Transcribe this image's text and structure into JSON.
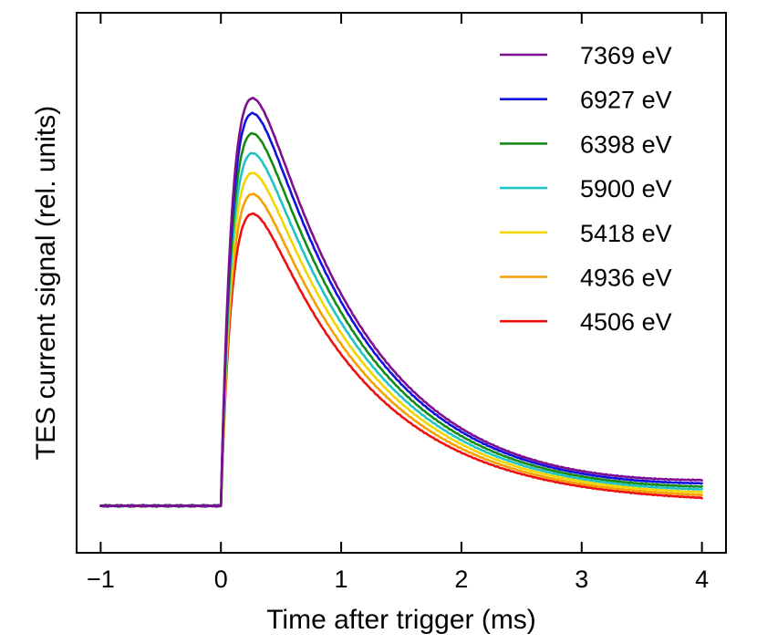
{
  "chart_data": {
    "type": "line",
    "title": "",
    "xlabel": "Time after trigger (ms)",
    "ylabel": "TES current signal (rel. units)",
    "xlim": [
      -1.2,
      4.2
    ],
    "ylim": [
      -0.1,
      1.05
    ],
    "xticks": [
      -1,
      0,
      1,
      2,
      3,
      4
    ],
    "xtick_labels": [
      "−1",
      "0",
      "1",
      "2",
      "3",
      "4"
    ],
    "y_ticks_shown": false,
    "grid": false,
    "legend_position": "top-right",
    "baseline": 0.0,
    "pulse_model": {
      "rise_tau_ms": 0.12,
      "decay_tau_ms": 0.95,
      "trigger_ms": 0.0,
      "end_ms": 4.0
    },
    "series": [
      {
        "name": "7369 eV",
        "color": "#7f0f90",
        "peak_time_ms": 0.37,
        "peak": 0.868,
        "value_at_4ms": 0.055
      },
      {
        "name": "6927 eV",
        "color": "#1010e0",
        "peak_time_ms": 0.37,
        "peak": 0.836,
        "value_at_4ms": 0.048
      },
      {
        "name": "6398 eV",
        "color": "#168a16",
        "peak_time_ms": 0.37,
        "peak": 0.793,
        "value_at_4ms": 0.041
      },
      {
        "name": "5900 eV",
        "color": "#20c4c4",
        "peak_time_ms": 0.37,
        "peak": 0.751,
        "value_at_4ms": 0.035
      },
      {
        "name": "5418 eV",
        "color": "#f2d600",
        "peak_time_ms": 0.37,
        "peak": 0.709,
        "value_at_4ms": 0.029
      },
      {
        "name": "4936 eV",
        "color": "#f5a000",
        "peak_time_ms": 0.37,
        "peak": 0.664,
        "value_at_4ms": 0.023
      },
      {
        "name": "4506 eV",
        "color": "#ee1111",
        "peak_time_ms": 0.37,
        "peak": 0.622,
        "value_at_4ms": 0.017
      }
    ]
  }
}
